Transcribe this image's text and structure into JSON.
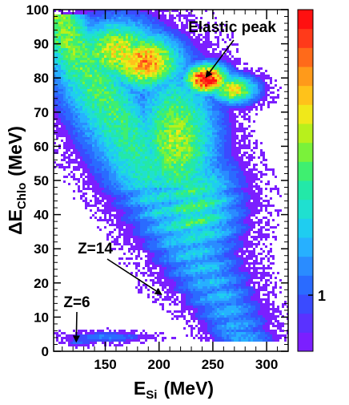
{
  "chart_data": {
    "type": "heatmap",
    "title": "",
    "xlabel": {
      "main": "E",
      "sub": "Si",
      "unit": "(MeV)"
    },
    "ylabel": {
      "prefix": "ΔE",
      "sub": "Chlo",
      "unit": "(MeV)"
    },
    "xlim": [
      102,
      320
    ],
    "ylim": [
      0,
      100
    ],
    "x_ticks": [
      "150",
      "200",
      "250",
      "300"
    ],
    "x_tick_values": [
      150,
      200,
      250,
      300
    ],
    "y_ticks": [
      "0",
      "10",
      "20",
      "30",
      "40",
      "50",
      "60",
      "70",
      "80",
      "90",
      "100"
    ],
    "y_tick_values": [
      0,
      10,
      20,
      30,
      40,
      50,
      60,
      70,
      80,
      90,
      100
    ],
    "colorbar": {
      "label": "1",
      "scale": "log",
      "colors": [
        "#7b1fff",
        "#5a32ff",
        "#3a4bff",
        "#2a6bff",
        "#2a8cff",
        "#27b0ff",
        "#1fcdf0",
        "#1fe0d0",
        "#23e8a8",
        "#3fef70",
        "#7af23a",
        "#b8f01c",
        "#f0e81a",
        "#ffc21a",
        "#ff9a1a",
        "#ff6a1a",
        "#ff3a1a",
        "#ff1010"
      ]
    },
    "annotations": [
      {
        "text": "Elastic peak",
        "x": 243,
        "y": 80
      },
      {
        "text": "Z=14",
        "x": 203,
        "y": 16.5
      },
      {
        "text": "Z=6",
        "x": 123,
        "y": 2.5
      }
    ],
    "density_regions": [
      {
        "name": "elastic-peak",
        "x": 243,
        "y": 80,
        "level": 1.0
      },
      {
        "name": "upper-band",
        "x": 185,
        "y": 85,
        "level": 0.75
      },
      {
        "name": "main-band-mid",
        "x": 220,
        "y": 55,
        "level": 0.55
      },
      {
        "name": "main-band-low",
        "x": 240,
        "y": 35,
        "level": 0.4
      },
      {
        "name": "z14-line",
        "x": 203,
        "y": 17,
        "level": 0.22
      },
      {
        "name": "z6-line",
        "x": 125,
        "y": 3,
        "level": 0.15
      }
    ]
  }
}
